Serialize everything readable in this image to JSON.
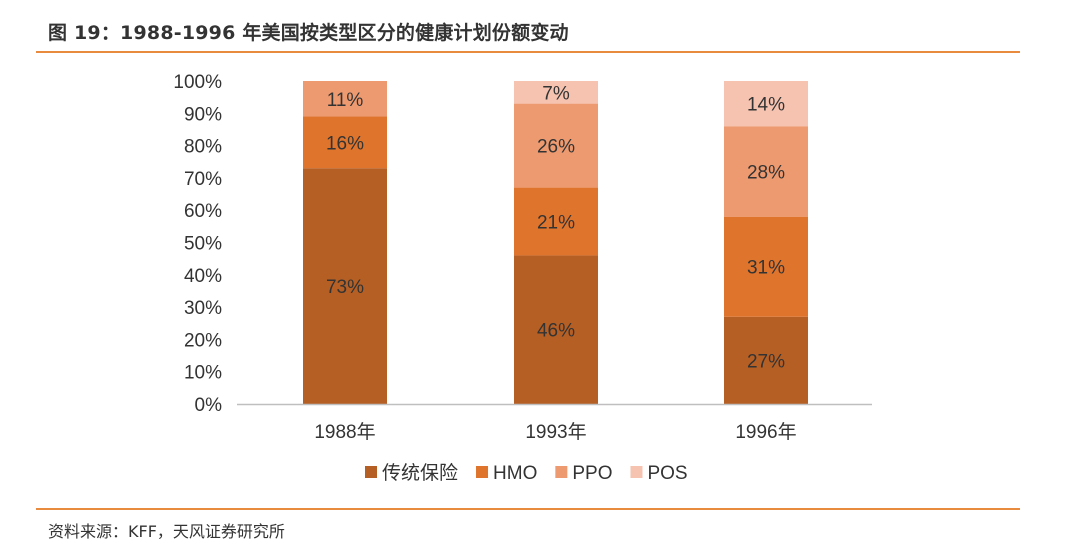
{
  "figure": {
    "title": "图 19：1988-1996 年美国按类型区分的健康计划份额变动",
    "source": "资料来源：KFF，天风证券研究所"
  },
  "colors": {
    "rule": "#e98b3f",
    "axis": "#bfbfbf"
  },
  "chart_data": {
    "type": "bar",
    "stacked": true,
    "categories": [
      "1988年",
      "1993年",
      "1996年"
    ],
    "ylim": [
      0,
      100
    ],
    "yticks": [
      "0%",
      "10%",
      "20%",
      "30%",
      "40%",
      "50%",
      "60%",
      "70%",
      "80%",
      "90%",
      "100%"
    ],
    "series": [
      {
        "name": "传统保险",
        "color": "#b55f24",
        "values": [
          73,
          46,
          27
        ],
        "labels": [
          "73%",
          "46%",
          "27%"
        ]
      },
      {
        "name": "HMO",
        "color": "#df742d",
        "values": [
          16,
          21,
          31
        ],
        "labels": [
          "16%",
          "21%",
          "31%"
        ]
      },
      {
        "name": "PPO",
        "color": "#ee9a70",
        "values": [
          11,
          26,
          28
        ],
        "labels": [
          "11%",
          "26%",
          "28%"
        ]
      },
      {
        "name": "POS",
        "color": "#f5c3b0",
        "values": [
          0,
          7,
          14
        ],
        "labels": [
          "",
          "7%",
          "14%"
        ]
      }
    ],
    "legend_position": "bottom",
    "grid": false,
    "title": "",
    "xlabel": "",
    "ylabel": ""
  }
}
